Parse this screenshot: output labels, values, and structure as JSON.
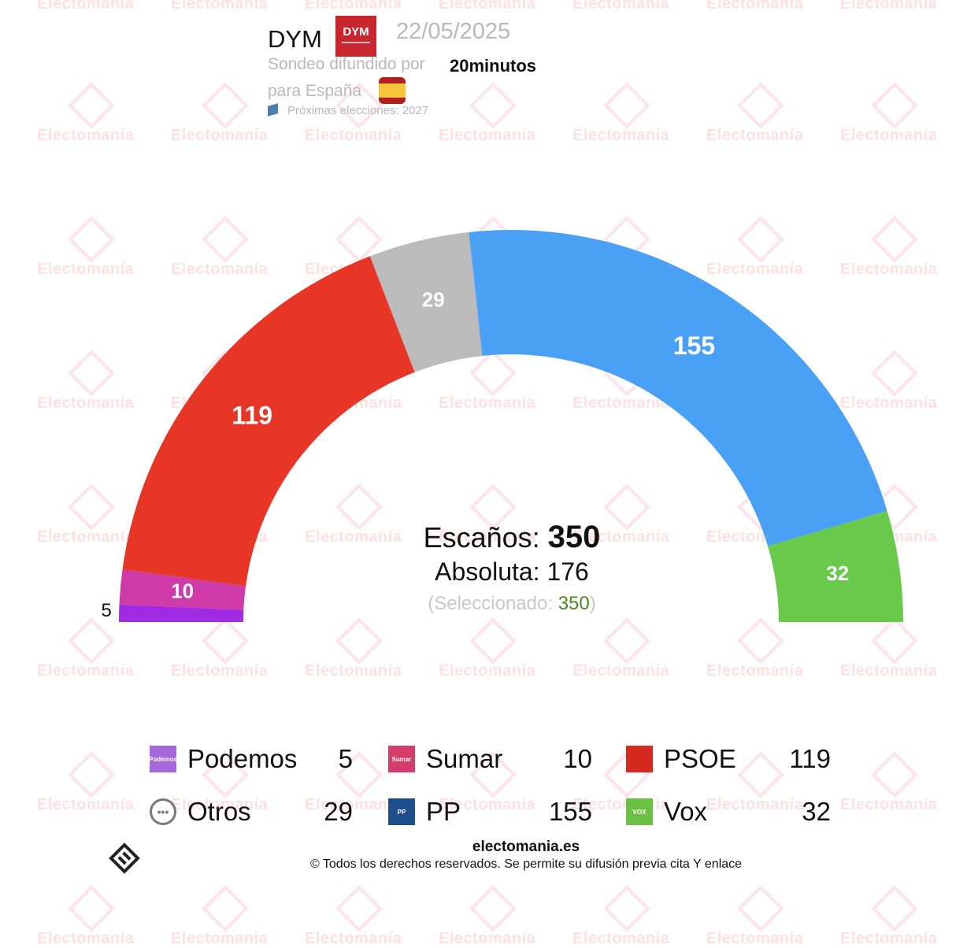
{
  "watermark": {
    "text": "Electomanía"
  },
  "header": {
    "pollster": "DYM",
    "pollster_logo_text": "DYM",
    "date": "22/05/2025",
    "media_prefix": "Sondeo difundido por",
    "media": "20minutos",
    "region": "para España",
    "next_elections": "Próximas elecciones: 2027"
  },
  "center": {
    "seats_label": "Escaños:",
    "seats_total": "350",
    "majority_label": "Absoluta:",
    "majority": "176",
    "selected_open": "(Seleccionado:",
    "selected": "350",
    "selected_close": ")"
  },
  "chart_data": {
    "type": "pie",
    "variant": "semicircle-parliament",
    "total": 350,
    "categories": [
      "Podemos",
      "Sumar",
      "PSOE",
      "Otros",
      "PP",
      "Vox"
    ],
    "values": [
      5,
      10,
      119,
      29,
      155,
      32
    ],
    "colors": [
      "#a02be3",
      "#ce3aa7",
      "#e73526",
      "#bbbbbb",
      "#4aa0f5",
      "#68c94b"
    ],
    "labels": [
      "5",
      "10",
      "119",
      "29",
      "155",
      "32"
    ]
  },
  "legend": [
    {
      "name": "Podemos",
      "seats": "5",
      "color": "#a467dc",
      "icon": "Podemos"
    },
    {
      "name": "Sumar",
      "seats": "10",
      "color": "#d53c69",
      "icon": "Sumar"
    },
    {
      "name": "PSOE",
      "seats": "119",
      "color": "#d6291f",
      "icon": ""
    },
    {
      "name": "Otros",
      "seats": "29",
      "color": "#777777",
      "icon": "•••"
    },
    {
      "name": "PP",
      "seats": "155",
      "color": "#1f4e8c",
      "icon": "PP"
    },
    {
      "name": "Vox",
      "seats": "32",
      "color": "#6bbf45",
      "icon": "VOX"
    }
  ],
  "footer": {
    "site": "electomania.es",
    "copyright": "© Todos los derechos reservados. Se permite su difusión previa cita Y enlace"
  }
}
